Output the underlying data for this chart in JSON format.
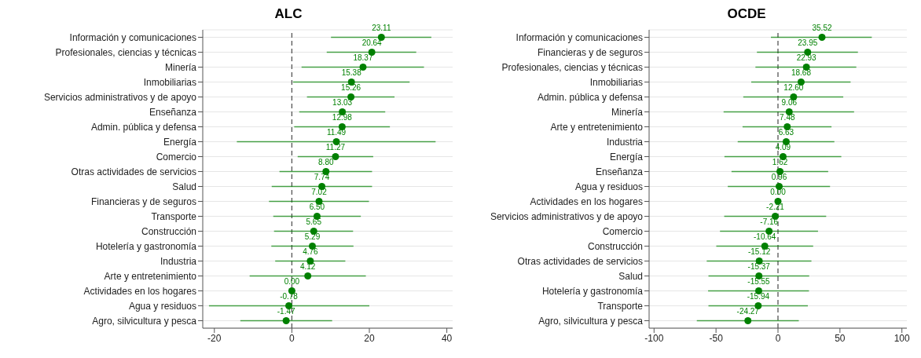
{
  "chart_data": [
    {
      "type": "scatter",
      "orientation": "horizontal",
      "title": "ALC",
      "color": "#008000",
      "marker": "circle",
      "grid": "y",
      "data_labels": true,
      "categories": [
        "Información y comunicaciones",
        "Profesionales, ciencias y técnicas",
        "Minería",
        "Inmobiliarias",
        "Servicios administrativos y de apoyo",
        "Enseñanza",
        "Admin. pública y defensa",
        "Energía",
        "Comercio",
        "Otras actividades de servicios",
        "Salud",
        "Financieras y de seguros",
        "Transporte",
        "Construcción",
        "Hotelería y gastronomía",
        "Industria",
        "Arte y entretenimiento",
        "Actividades en los hogares",
        "Agua y residuos",
        "Agro, silvicultura y pesca"
      ],
      "values": [
        23.11,
        20.64,
        18.37,
        15.38,
        15.26,
        13.03,
        12.98,
        11.49,
        11.27,
        8.8,
        7.74,
        7.02,
        6.5,
        5.65,
        5.29,
        4.76,
        4.12,
        0.0,
        -0.78,
        -1.47
      ],
      "value_labels": [
        "23.11",
        "20.64",
        "18.37",
        "15.38",
        "15.26",
        "13.03",
        "12.98",
        "11.49",
        "11.27",
        "8.80",
        "7.74",
        "7.02",
        "6.50",
        "5.65",
        "5.29",
        "4.76",
        "4.12",
        "0.00",
        "-0.78",
        "-1.47"
      ],
      "errors": [
        [
          10.1,
          36.0
        ],
        [
          9.0,
          32.1
        ],
        [
          2.5,
          34.1
        ],
        [
          0.3,
          30.4
        ],
        [
          3.9,
          26.5
        ],
        [
          1.9,
          24.1
        ],
        [
          0.6,
          25.3
        ],
        [
          -14.2,
          37.1
        ],
        [
          1.5,
          21.0
        ],
        [
          -3.2,
          20.7
        ],
        [
          -5.2,
          20.7
        ],
        [
          -5.9,
          19.9
        ],
        [
          -4.8,
          17.8
        ],
        [
          -4.6,
          15.8
        ],
        [
          -5.3,
          15.9
        ],
        [
          -4.3,
          13.8
        ],
        [
          -10.9,
          19.1
        ],
        null,
        [
          -21.4,
          20.0
        ],
        [
          -13.3,
          10.4
        ]
      ],
      "xlim": [
        -23,
        41.5
      ],
      "xticks": [
        -20,
        0,
        20,
        40
      ],
      "ref_lines": [
        {
          "axis": "x",
          "value": 0,
          "color": "#555555",
          "line_style": "dashed"
        }
      ]
    },
    {
      "type": "scatter",
      "orientation": "horizontal",
      "title": "OCDE",
      "color": "#008000",
      "marker": "circle",
      "grid": "y",
      "data_labels": true,
      "categories": [
        "Información y comunicaciones",
        "Financieras y de seguros",
        "Profesionales, ciencias y técnicas",
        "Inmobiliarias",
        "Admin. pública y defensa",
        "Minería",
        "Arte y entretenimiento",
        "Industria",
        "Energía",
        "Enseñanza",
        "Agua y residuos",
        "Actividades en los hogares",
        "Servicios administrativos y de apoyo",
        "Comercio",
        "Construcción",
        "Otras actividades de servicios",
        "Salud",
        "Hotelería y gastronomía",
        "Transporte",
        "Agro, silvicultura y pesca"
      ],
      "values": [
        35.52,
        23.95,
        22.93,
        18.68,
        12.6,
        9.06,
        7.48,
        6.63,
        4.09,
        1.62,
        0.96,
        0.0,
        -2.21,
        -7.16,
        -10.64,
        -15.12,
        -15.37,
        -15.55,
        -15.94,
        -24.27
      ],
      "value_labels": [
        "35.52",
        "23.95",
        "22.93",
        "18.68",
        "12.60",
        "9.06",
        "7.48",
        "6.63",
        "4.09",
        "1.62",
        "0.96",
        "0.00",
        "-2.21",
        "-7.16",
        "-10.64",
        "-15.12",
        "-15.37",
        "-15.55",
        "-15.94",
        "-24.27"
      ],
      "errors": [
        [
          -5.7,
          75.7
        ],
        [
          -17.0,
          64.5
        ],
        [
          -18.2,
          63.2
        ],
        [
          -21.6,
          58.6
        ],
        [
          -28.0,
          52.7
        ],
        [
          -43.9,
          61.4
        ],
        [
          -28.6,
          43.2
        ],
        [
          -32.5,
          45.5
        ],
        [
          -43.2,
          51.1
        ],
        [
          -37.5,
          40.5
        ],
        [
          -40.5,
          42.0
        ],
        null,
        [
          -43.4,
          38.9
        ],
        [
          -46.8,
          32.3
        ],
        [
          -49.8,
          28.4
        ],
        [
          -57.5,
          27.0
        ],
        [
          -56.1,
          25.2
        ],
        [
          -56.4,
          25.0
        ],
        [
          -56.1,
          24.1
        ],
        [
          -65.5,
          16.8
        ]
      ],
      "xlim": [
        -104,
        104
      ],
      "xticks": [
        -100,
        -50,
        0,
        50,
        100
      ],
      "ref_lines": [
        {
          "axis": "x",
          "value": 0,
          "color": "#555555",
          "line_style": "dashed"
        }
      ]
    }
  ]
}
